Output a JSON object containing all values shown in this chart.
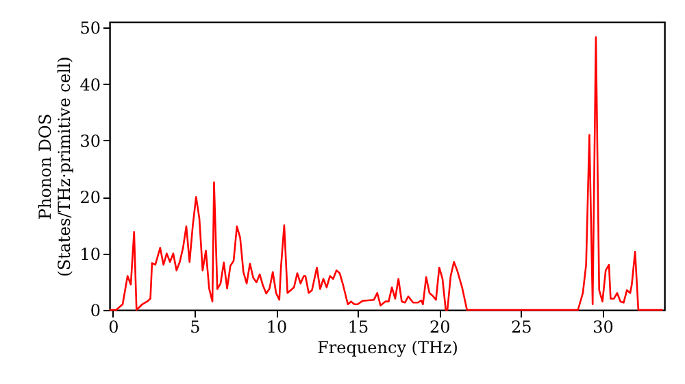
{
  "chart_data": {
    "type": "line",
    "xlabel": "Frequency (THz)",
    "ylabel": "Phonon DOS\n(States/THz·primitive cell)",
    "xlim": [
      -0.2,
      33.8
    ],
    "ylim": [
      0,
      51
    ],
    "xticks": [
      0,
      5,
      10,
      15,
      20,
      25,
      30
    ],
    "yticks": [
      0,
      10,
      20,
      30,
      40,
      50
    ],
    "grid": false,
    "marker": "none",
    "line_style": "solid",
    "x": [
      -0.2,
      0.2,
      0.6,
      0.9,
      1.1,
      1.3,
      1.45,
      1.8,
      2.1,
      2.3,
      2.4,
      2.6,
      2.9,
      3.1,
      3.3,
      3.5,
      3.7,
      3.9,
      4.1,
      4.3,
      4.5,
      4.7,
      4.9,
      5.1,
      5.3,
      5.5,
      5.7,
      5.9,
      6.1,
      6.2,
      6.4,
      6.6,
      6.8,
      7.0,
      7.2,
      7.4,
      7.6,
      7.8,
      8.0,
      8.2,
      8.4,
      8.6,
      8.8,
      9.0,
      9.2,
      9.4,
      9.6,
      9.8,
      10.0,
      10.2,
      10.3,
      10.5,
      10.7,
      11.1,
      11.3,
      11.5,
      11.7,
      11.8,
      12.0,
      12.2,
      12.5,
      12.7,
      12.9,
      13.1,
      13.3,
      13.5,
      13.7,
      13.9,
      14.1,
      14.4,
      14.6,
      14.8,
      15.0,
      15.3,
      16.0,
      16.2,
      16.4,
      16.7,
      16.9,
      17.1,
      17.3,
      17.5,
      17.7,
      17.9,
      18.1,
      18.4,
      18.7,
      18.9,
      19.0,
      19.2,
      19.4,
      19.6,
      19.8,
      20.0,
      20.2,
      20.4,
      20.5,
      20.7,
      20.9,
      21.1,
      21.4,
      21.7,
      28.5,
      28.8,
      29.0,
      29.2,
      29.4,
      29.6,
      29.8,
      30.0,
      30.2,
      30.4,
      30.5,
      30.7,
      30.9,
      31.1,
      31.3,
      31.5,
      31.7,
      31.8,
      32.0,
      32.2,
      33.7
    ],
    "series": [
      {
        "color": "#ff0000",
        "values": [
          0,
          0,
          1,
          6,
          4.5,
          13.8,
          0,
          1,
          1.5,
          2,
          8.3,
          8,
          11,
          8,
          10,
          8.5,
          10,
          7,
          8.5,
          11,
          14.8,
          8.5,
          15,
          20,
          16.2,
          7,
          10.5,
          3.8,
          1.5,
          22.6,
          3.7,
          4.7,
          8.4,
          3.8,
          7.8,
          8.7,
          14.8,
          12.8,
          6.7,
          4.7,
          8.2,
          5.7,
          4.9,
          6.3,
          4.3,
          2.9,
          3.8,
          6.7,
          3,
          1.8,
          7.5,
          15,
          3,
          4,
          6.5,
          4.7,
          6,
          6,
          3,
          3.5,
          7.5,
          3.7,
          5.5,
          4,
          6,
          5.5,
          7,
          6.5,
          4.5,
          1,
          1.5,
          1,
          1,
          1.6,
          1.8,
          3,
          0.8,
          1.5,
          1.5,
          4,
          2,
          5.5,
          1.5,
          1.3,
          2.4,
          1.3,
          1.3,
          1.7,
          1,
          5.8,
          3,
          2.5,
          1.8,
          7.5,
          5.5,
          0,
          0,
          6,
          8.5,
          7,
          4,
          0,
          0,
          3,
          8,
          31,
          1,
          48.3,
          3.5,
          1.5,
          7,
          8,
          2,
          2,
          3,
          1.5,
          1.3,
          3.5,
          3,
          4.5,
          10.3,
          0,
          0
        ]
      }
    ]
  }
}
